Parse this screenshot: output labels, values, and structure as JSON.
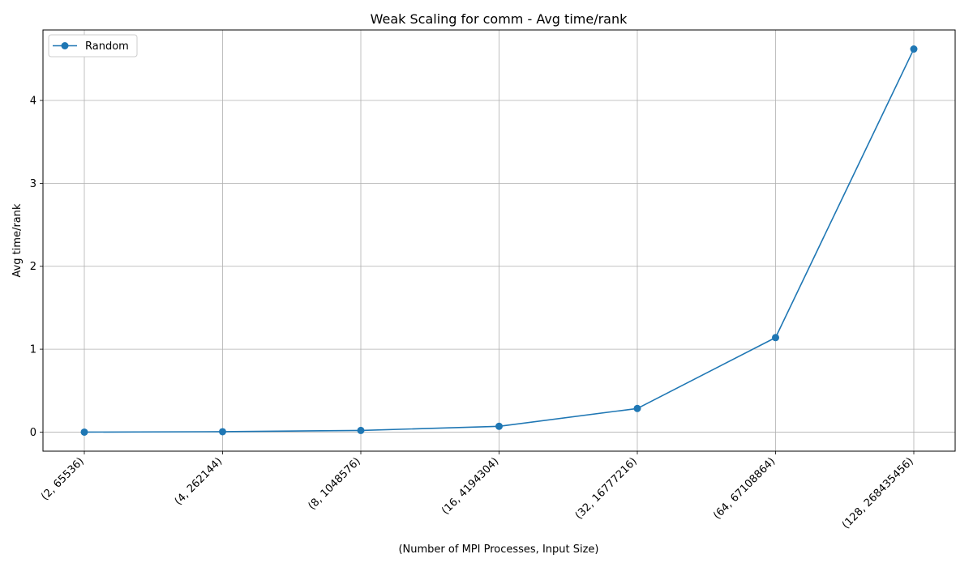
{
  "chart_data": {
    "type": "line",
    "title": "Weak Scaling for comm - Avg time/rank",
    "xlabel": "(Number of MPI Processes, Input Size)",
    "ylabel": "Avg time/rank",
    "categories": [
      "(2, 65536)",
      "(4, 262144)",
      "(8, 1048576)",
      "(16, 4194304)",
      "(32, 16777216)",
      "(64, 67108864)",
      "(128, 268435456)"
    ],
    "series": [
      {
        "name": "Random",
        "values": [
          0.0,
          0.005,
          0.02,
          0.07,
          0.285,
          1.14,
          4.62
        ],
        "color": "#1f77b4"
      }
    ],
    "yticks": [
      0,
      1,
      2,
      3,
      4
    ],
    "ylim": [
      -0.23,
      4.85
    ],
    "grid": true,
    "legend": "top-left"
  }
}
